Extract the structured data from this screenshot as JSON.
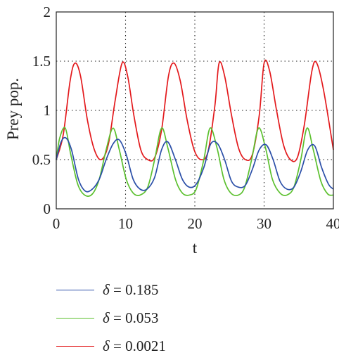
{
  "chart_data": {
    "type": "line",
    "title": "",
    "xlabel": "t",
    "ylabel": "Prey pop.",
    "xlim": [
      0,
      40
    ],
    "ylim": [
      0,
      2
    ],
    "xticks": [
      "0",
      "10",
      "20",
      "30",
      "40"
    ],
    "yticks": [
      "0",
      "0.5",
      "1",
      "1.5",
      "2"
    ],
    "grid": "dotted",
    "legend_position": "bottom",
    "series": [
      {
        "name": "δ = 0.185",
        "color": "#2b4fa8",
        "x": [
          0,
          0.7,
          1.4,
          2.2,
          3.2,
          4.2,
          5.2,
          6.2,
          7.2,
          8.2,
          9.1,
          10.1,
          11.1,
          12.1,
          13.1,
          14.2,
          15.2,
          16.1,
          17.2,
          18.2,
          19.2,
          20.2,
          21.3,
          22.3,
          23.3,
          24.3,
          25.3,
          26.3,
          27.3,
          28.3,
          29.3,
          30.3,
          31.3,
          32.3,
          33.3,
          34.3,
          35.3,
          36.3,
          37.3,
          38.3,
          39.3,
          40
        ],
        "y": [
          0.5,
          0.68,
          0.72,
          0.6,
          0.3,
          0.18,
          0.2,
          0.3,
          0.5,
          0.66,
          0.7,
          0.55,
          0.3,
          0.2,
          0.2,
          0.32,
          0.6,
          0.68,
          0.5,
          0.3,
          0.22,
          0.25,
          0.42,
          0.66,
          0.66,
          0.5,
          0.28,
          0.22,
          0.24,
          0.4,
          0.6,
          0.65,
          0.5,
          0.28,
          0.2,
          0.22,
          0.38,
          0.6,
          0.64,
          0.42,
          0.25,
          0.2
        ]
      },
      {
        "name": "δ = 0.053",
        "color": "#5cc02f",
        "x": [
          0,
          0.5,
          1.3,
          2.1,
          3.1,
          4.1,
          5.2,
          6.2,
          7.2,
          8.2,
          9.1,
          10.1,
          11.1,
          12.1,
          13.2,
          14.2,
          15.2,
          16.1,
          17.2,
          18.2,
          19.2,
          20.2,
          21.3,
          22.2,
          23.2,
          24.2,
          25.2,
          26.3,
          27.2,
          28.2,
          29.2,
          30.2,
          31.2,
          32.3,
          33.3,
          34.3,
          35.3,
          36.2,
          37.1,
          38.2,
          39.2,
          40
        ],
        "y": [
          0.5,
          0.72,
          0.82,
          0.55,
          0.25,
          0.14,
          0.15,
          0.3,
          0.6,
          0.82,
          0.6,
          0.3,
          0.16,
          0.14,
          0.22,
          0.5,
          0.82,
          0.62,
          0.3,
          0.16,
          0.14,
          0.2,
          0.5,
          0.82,
          0.62,
          0.3,
          0.16,
          0.14,
          0.22,
          0.5,
          0.82,
          0.62,
          0.3,
          0.16,
          0.14,
          0.22,
          0.5,
          0.82,
          0.6,
          0.28,
          0.15,
          0.14
        ]
      },
      {
        "name": "δ = 0.0021",
        "color": "#e3191c",
        "x": [
          0,
          1.0,
          2.0,
          2.7,
          3.5,
          4.5,
          5.5,
          6.5,
          7.5,
          8.5,
          9.5,
          10.3,
          11.2,
          12.2,
          13.2,
          14.2,
          15.2,
          16.2,
          17.0,
          17.9,
          18.9,
          19.9,
          20.9,
          21.9,
          22.9,
          23.5,
          24.3,
          25.3,
          26.3,
          27.3,
          28.3,
          29.3,
          30.0,
          30.8,
          31.8,
          32.8,
          33.8,
          34.8,
          35.8,
          36.9,
          37.6,
          38.6,
          40
        ],
        "y": [
          0.5,
          0.75,
          1.3,
          1.48,
          1.35,
          0.9,
          0.6,
          0.5,
          0.65,
          1.1,
          1.48,
          1.35,
          0.95,
          0.6,
          0.5,
          0.52,
          0.8,
          1.35,
          1.48,
          1.3,
          0.9,
          0.6,
          0.5,
          0.58,
          1.05,
          1.48,
          1.35,
          0.95,
          0.62,
          0.5,
          0.55,
          0.95,
          1.48,
          1.4,
          1.0,
          0.65,
          0.5,
          0.52,
          0.85,
          1.4,
          1.48,
          1.2,
          0.6
        ]
      }
    ]
  }
}
